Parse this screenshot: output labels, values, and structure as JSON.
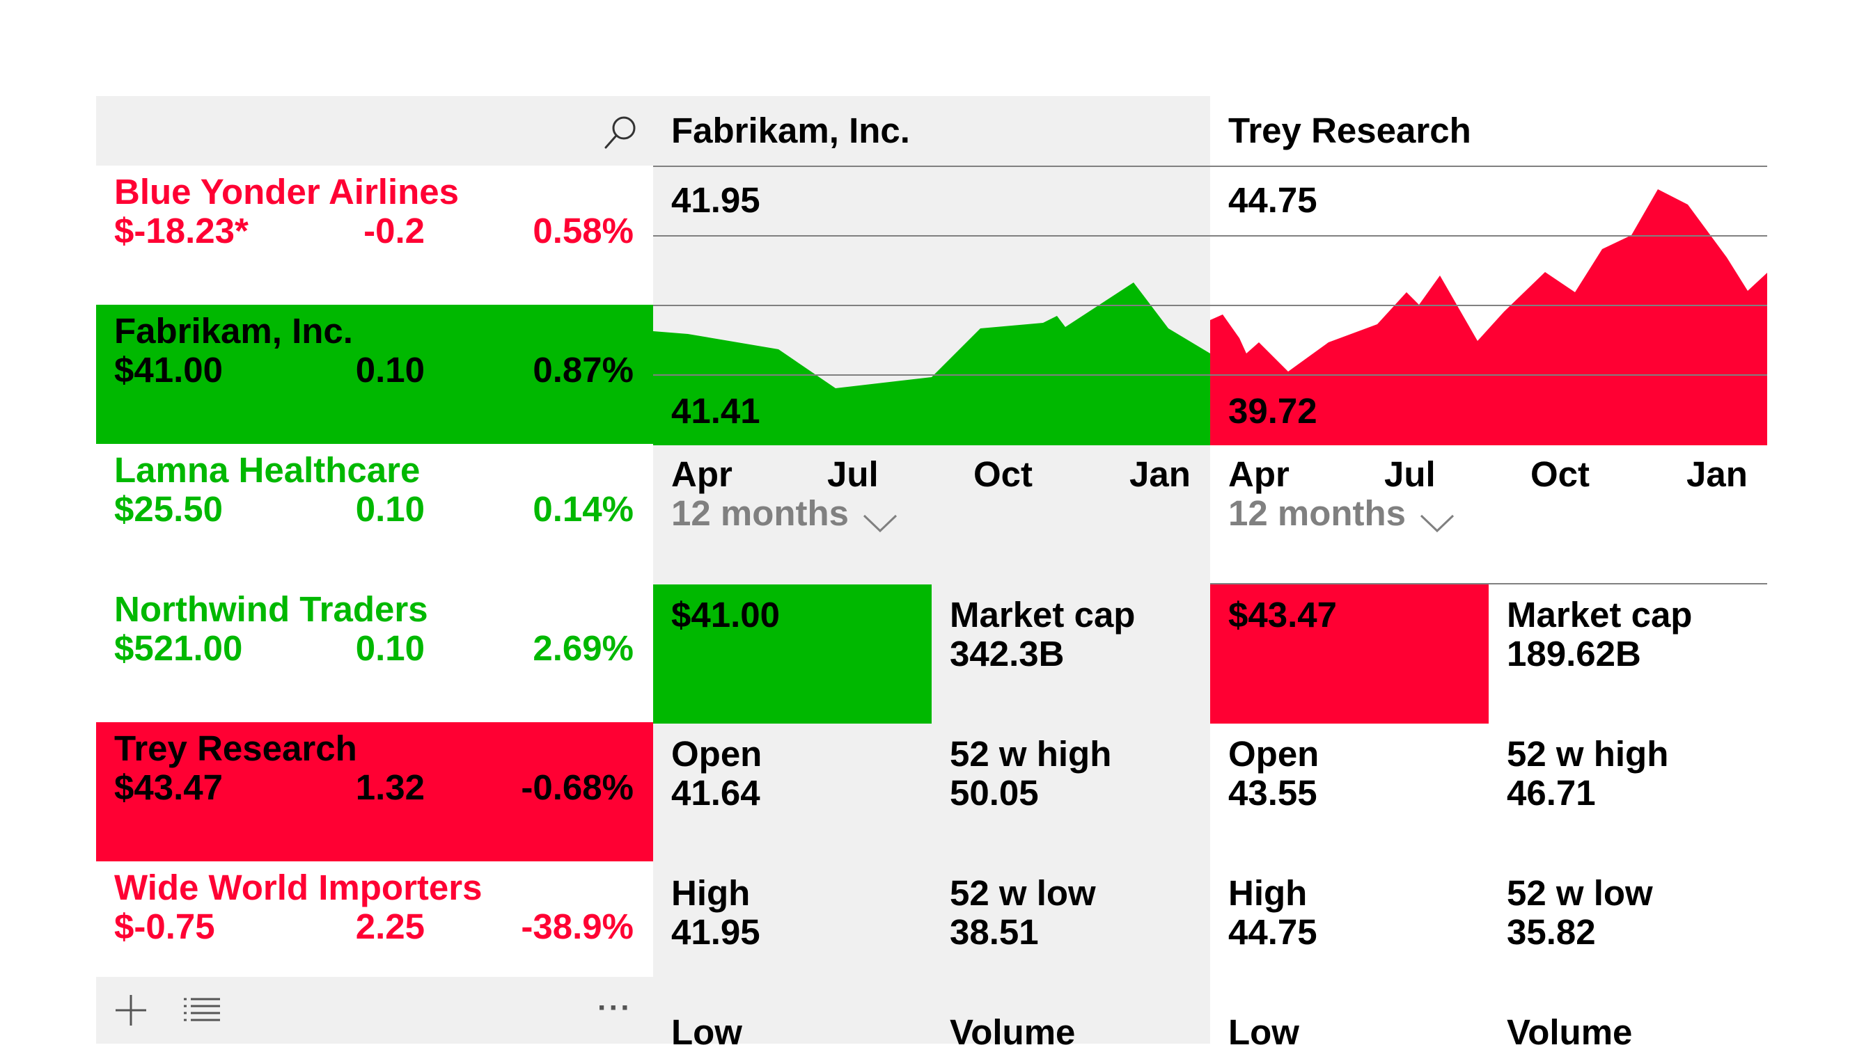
{
  "watchlist": {
    "items": [
      {
        "name": "Blue Yonder Airlines",
        "price": "$-18.23*",
        "change": "-0.2",
        "pct": "0.58%"
      },
      {
        "name": "Fabrikam, Inc.",
        "price": "$41.00",
        "change": "0.10",
        "pct": "0.87%"
      },
      {
        "name": "Lamna Healthcare",
        "price": "$25.50",
        "change": "0.10",
        "pct": "0.14%"
      },
      {
        "name": "Northwind Traders",
        "price": "$521.00",
        "change": "0.10",
        "pct": "2.69%"
      },
      {
        "name": "Trey Research",
        "price": "$43.47",
        "change": "1.32",
        "pct": "-0.68%"
      },
      {
        "name": "Wide World Importers",
        "price": "$-0.75",
        "change": "2.25",
        "pct": "-38.9%"
      }
    ],
    "footer": {
      "more": "···"
    }
  },
  "panels": [
    {
      "title": "Fabrikam, Inc.",
      "chart_high": "41.95",
      "chart_low": "41.41",
      "months": [
        "Apr",
        "Jul",
        "Oct",
        "Jan"
      ],
      "range": "12 months",
      "price": "$41.00",
      "market_cap_label": "Market cap",
      "market_cap": "342.3B",
      "open_label": "Open",
      "open": "41.64",
      "high52_label": "52 w high",
      "high52": "50.05",
      "high_label": "High",
      "high": "41.95",
      "low52_label": "52 w low",
      "low52": "38.51",
      "low_label": "Low",
      "volume_label": "Volume"
    },
    {
      "title": "Trey Research",
      "chart_high": "44.75",
      "chart_low": "39.72",
      "months": [
        "Apr",
        "Jul",
        "Oct",
        "Jan"
      ],
      "range": "12 months",
      "price": "$43.47",
      "market_cap_label": "Market cap",
      "market_cap": "189.62B",
      "open_label": "Open",
      "open": "43.55",
      "high52_label": "52 w high",
      "high52": "46.71",
      "high_label": "High",
      "high": "44.75",
      "low52_label": "52 w low",
      "low52": "35.82",
      "low_label": "Low",
      "volume_label": "Volume"
    }
  ],
  "colors": {
    "up": "#00b800",
    "down": "#ff0033",
    "panel_bg": "#f0f0f0",
    "muted": "#808080"
  },
  "icons": {
    "search": "search-icon",
    "add": "add-icon",
    "list": "list-icon",
    "more": "more-icon",
    "chevron": "chevron-down-icon"
  }
}
